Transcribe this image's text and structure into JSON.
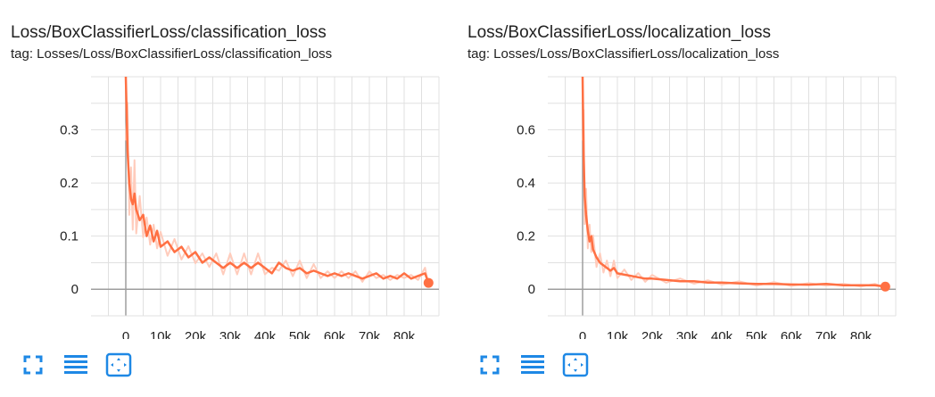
{
  "colors": {
    "line": "#ff7043",
    "raw_line": "#ffccbc",
    "grid": "#e0e0e0",
    "axis": "#9e9e9e",
    "icon": "#1e88e5"
  },
  "chart_data": [
    {
      "type": "line",
      "title": "Loss/BoxClassifierLoss/classification_loss",
      "tag": "tag: Losses/Loss/BoxClassifierLoss/classification_loss",
      "xlim": [
        -10000,
        90000
      ],
      "ylim": [
        -0.05,
        0.4
      ],
      "x_ticks": [
        0,
        10000,
        20000,
        30000,
        40000,
        50000,
        60000,
        70000,
        80000
      ],
      "x_tick_labels": [
        "0",
        "10k",
        "20k",
        "30k",
        "40k",
        "50k",
        "60k",
        "70k",
        "80k"
      ],
      "y_ticks": [
        0,
        0.1,
        0.2,
        0.3
      ],
      "y_tick_labels": [
        "0",
        "0.1",
        "0.2",
        "0.3"
      ],
      "grid": true,
      "series": [
        {
          "x": [
            0,
            500,
            1000,
            1500,
            2000,
            2500,
            3000,
            4000,
            5000,
            6000,
            7000,
            8000,
            9000,
            10000,
            12000,
            14000,
            16000,
            18000,
            20000,
            22000,
            24000,
            26000,
            28000,
            30000,
            32000,
            34000,
            36000,
            38000,
            40000,
            42000,
            44000,
            46000,
            48000,
            50000,
            52000,
            54000,
            56000,
            58000,
            60000,
            62000,
            64000,
            66000,
            68000,
            70000,
            72000,
            74000,
            76000,
            78000,
            80000,
            82000,
            84000,
            86000,
            87000
          ],
          "y": [
            0.4,
            0.26,
            0.2,
            0.17,
            0.16,
            0.18,
            0.15,
            0.13,
            0.14,
            0.1,
            0.12,
            0.09,
            0.11,
            0.08,
            0.09,
            0.07,
            0.08,
            0.06,
            0.07,
            0.05,
            0.06,
            0.05,
            0.04,
            0.05,
            0.04,
            0.05,
            0.04,
            0.05,
            0.04,
            0.03,
            0.05,
            0.04,
            0.035,
            0.04,
            0.03,
            0.035,
            0.03,
            0.025,
            0.03,
            0.025,
            0.03,
            0.025,
            0.02,
            0.025,
            0.03,
            0.02,
            0.025,
            0.02,
            0.03,
            0.02,
            0.025,
            0.03,
            0.012
          ]
        }
      ],
      "end_marker": {
        "x": 87000,
        "y": 0.012
      }
    },
    {
      "type": "line",
      "title": "Loss/BoxClassifierLoss/localization_loss",
      "tag": "tag: Losses/Loss/BoxClassifierLoss/localization_loss",
      "xlim": [
        -10000,
        90000
      ],
      "ylim": [
        -0.1,
        0.8
      ],
      "x_ticks": [
        0,
        10000,
        20000,
        30000,
        40000,
        50000,
        60000,
        70000,
        80000
      ],
      "x_tick_labels": [
        "0",
        "10k",
        "20k",
        "30k",
        "40k",
        "50k",
        "60k",
        "70k",
        "80k"
      ],
      "y_ticks": [
        0,
        0.2,
        0.4,
        0.6
      ],
      "y_tick_labels": [
        "0",
        "0.2",
        "0.4",
        "0.6"
      ],
      "grid": true,
      "series": [
        {
          "x": [
            0,
            300,
            600,
            1000,
            1500,
            2000,
            2500,
            3000,
            4000,
            5000,
            6000,
            7000,
            8000,
            9000,
            10000,
            12000,
            14000,
            16000,
            18000,
            20000,
            24000,
            28000,
            32000,
            36000,
            40000,
            45000,
            50000,
            55000,
            60000,
            65000,
            70000,
            75000,
            80000,
            84000,
            87000
          ],
          "y": [
            0.8,
            0.5,
            0.35,
            0.28,
            0.22,
            0.18,
            0.2,
            0.15,
            0.12,
            0.1,
            0.09,
            0.08,
            0.07,
            0.08,
            0.06,
            0.055,
            0.05,
            0.045,
            0.04,
            0.04,
            0.035,
            0.03,
            0.03,
            0.025,
            0.025,
            0.022,
            0.02,
            0.02,
            0.018,
            0.017,
            0.02,
            0.015,
            0.015,
            0.015,
            0.01
          ]
        }
      ],
      "end_marker": {
        "x": 87000,
        "y": 0.01
      }
    }
  ],
  "toolbar": [
    {
      "icon": "fullscreen-icon"
    },
    {
      "icon": "toggle-log-scale-icon"
    },
    {
      "icon": "fit-domain-icon"
    }
  ]
}
